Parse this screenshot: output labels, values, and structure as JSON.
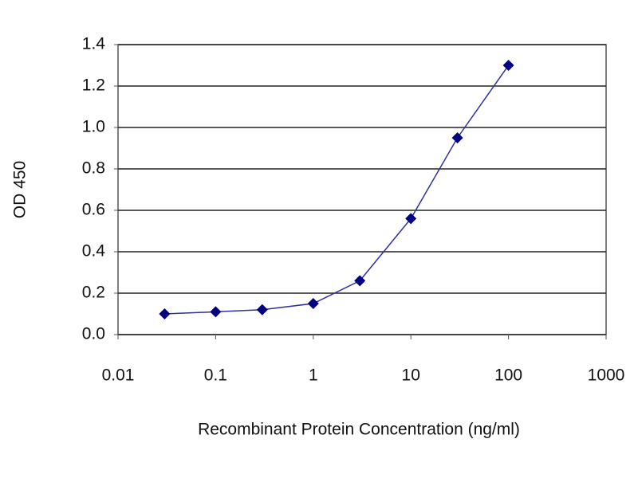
{
  "chart_data": {
    "type": "line",
    "x_label": "Recombinant Protein Concentration (ng/ml)",
    "y_label": "OD 450",
    "x": [
      0.03,
      0.1,
      0.3,
      1,
      3,
      10,
      30,
      100
    ],
    "series": [
      {
        "color": "#000080",
        "values": [
          0.1,
          0.11,
          0.12,
          0.15,
          0.26,
          0.56,
          0.95,
          1.3
        ]
      }
    ],
    "xscale": "log",
    "xlim": [
      0.01,
      1000
    ],
    "xticks": [
      0.01,
      0.1,
      1,
      10,
      100,
      1000
    ],
    "ylim": [
      0,
      1.4
    ],
    "yticks": [
      {
        "value": 0,
        "label": "0.0"
      },
      0.2,
      0.4,
      0.6,
      0.8,
      {
        "value": 1,
        "label": "1.0"
      },
      1.2,
      1.4
    ],
    "grid": true
  }
}
